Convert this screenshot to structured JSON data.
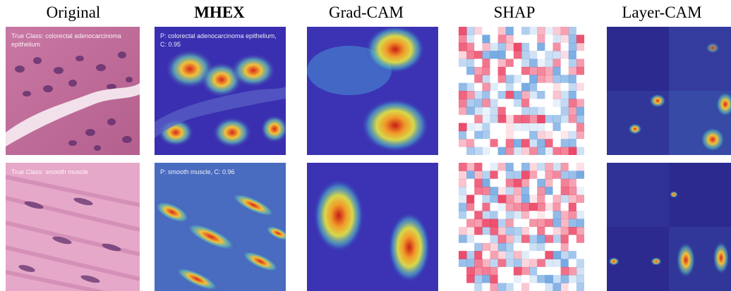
{
  "columns": {
    "original": "Original",
    "mhex": "MHEX",
    "gradcam": "Grad-CAM",
    "shap": "SHAP",
    "layercam": "Layer-CAM"
  },
  "rows": [
    {
      "original_text": "True Class: colorectal adenocarcinoma epithelium",
      "mhex_text": "P: colorectal adenocarcinoma epithelium, C: 0.95"
    },
    {
      "original_text": "True Class: smooth muscle",
      "mhex_text": "P: smooth muscle, C: 0.96"
    }
  ],
  "colors": {
    "tissue_bg": "#d98ab0",
    "nucleus": "#5a2a6a",
    "heat_low": "#3a2fb0",
    "heat_high": "#d7261a",
    "shap_pos": "#e8244a",
    "shap_neg": "#3d86d6"
  }
}
